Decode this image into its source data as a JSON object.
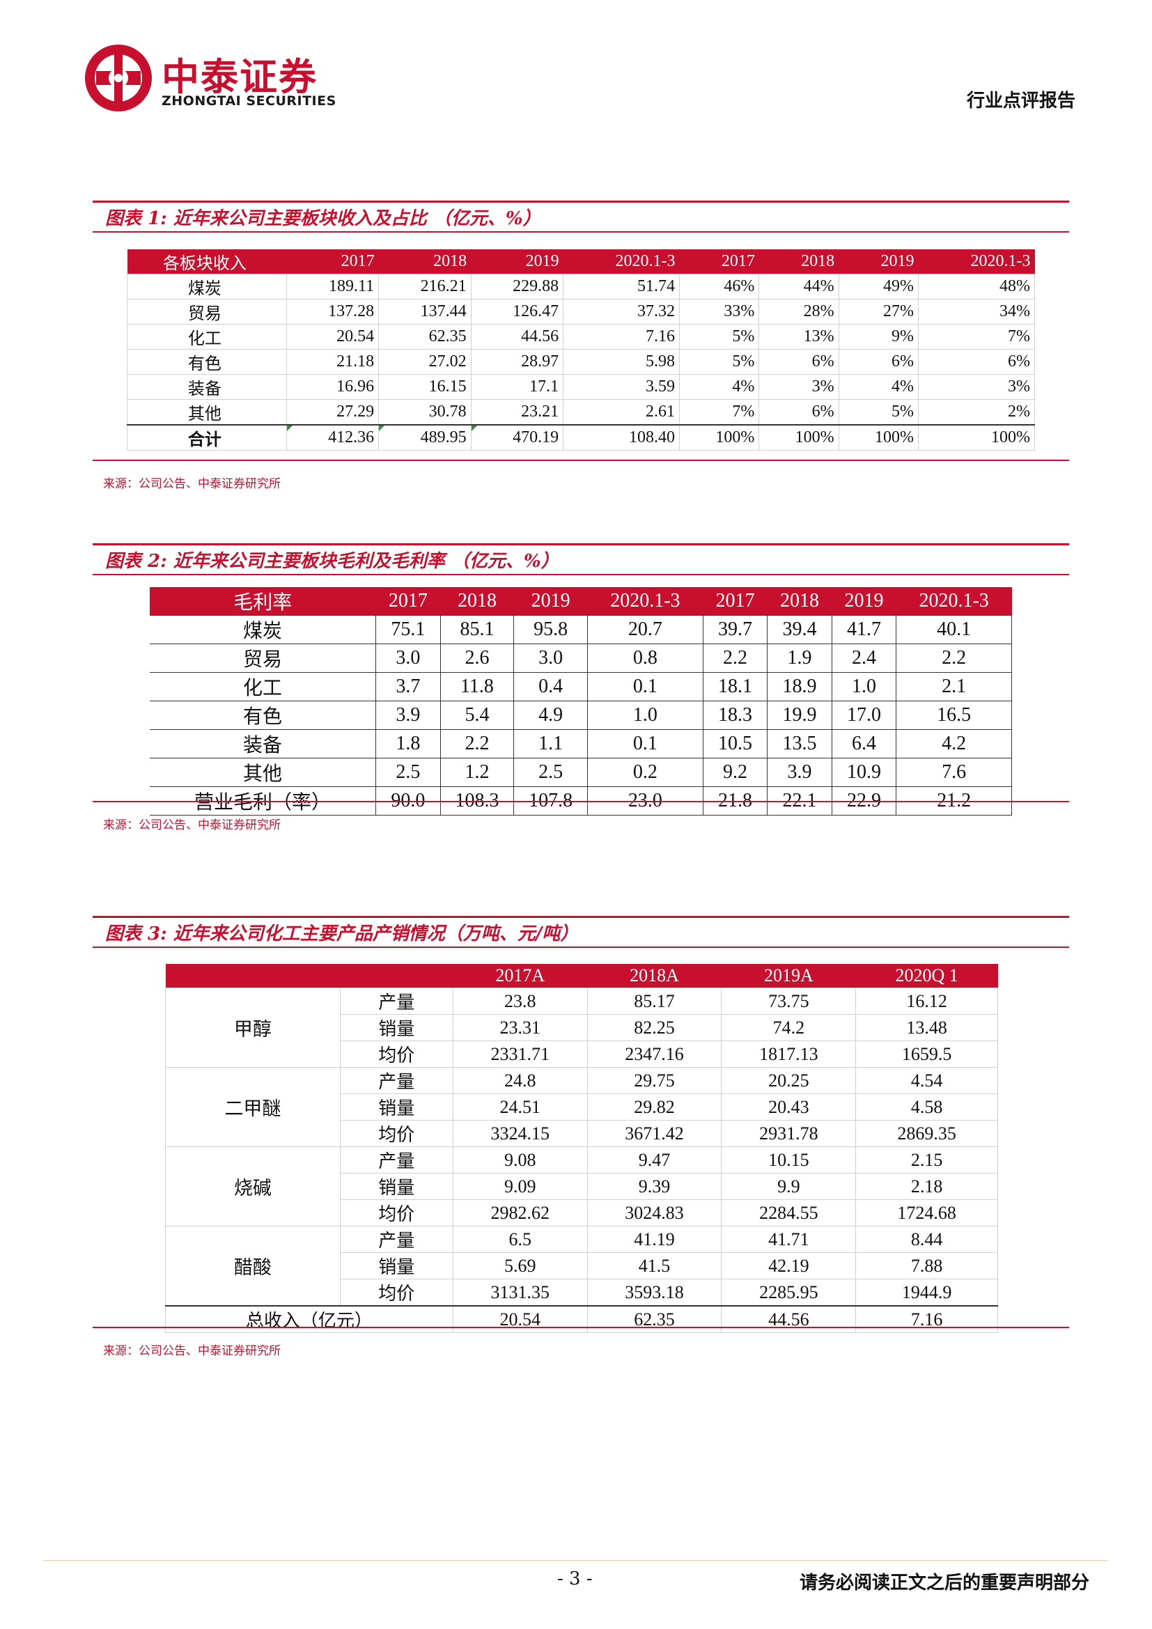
{
  "header": {
    "brand_cn": "中泰证券",
    "brand_en": "ZHONGTAI SECURITIES",
    "report_type": "行业点评报告"
  },
  "figure1": {
    "title": "图表 1:  近年来公司主要板块收入及占比  （亿元、%）",
    "columns": [
      "各板块收入",
      "2017",
      "2018",
      "2019",
      "2020.1-3",
      "2017",
      "2018",
      "2019",
      "2020.1-3"
    ],
    "rows": [
      [
        "煤炭",
        "189.11",
        "216.21",
        "229.88",
        "51.74",
        "46%",
        "44%",
        "49%",
        "48%"
      ],
      [
        "贸易",
        "137.28",
        "137.44",
        "126.47",
        "37.32",
        "33%",
        "28%",
        "27%",
        "34%"
      ],
      [
        "化工",
        "20.54",
        "62.35",
        "44.56",
        "7.16",
        "5%",
        "13%",
        "9%",
        "7%"
      ],
      [
        "有色",
        "21.18",
        "27.02",
        "28.97",
        "5.98",
        "5%",
        "6%",
        "6%",
        "6%"
      ],
      [
        "装备",
        "16.96",
        "16.15",
        "17.1",
        "3.59",
        "4%",
        "3%",
        "4%",
        "3%"
      ],
      [
        "其他",
        "27.29",
        "30.78",
        "23.21",
        "2.61",
        "7%",
        "6%",
        "5%",
        "2%"
      ]
    ],
    "total": [
      "合计",
      "412.36",
      "489.95",
      "470.19",
      "108.40",
      "100%",
      "100%",
      "100%",
      "100%"
    ],
    "source": "来源：公司公告、中泰证券研究所"
  },
  "figure2": {
    "title": "图表 2:  近年来公司主要板块毛利及毛利率  （亿元、%）",
    "columns": [
      "毛利率",
      "2017",
      "2018",
      "2019",
      "2020.1-3",
      "2017",
      "2018",
      "2019",
      "2020.1-3"
    ],
    "rows": [
      [
        "煤炭",
        "75.1",
        "85.1",
        "95.8",
        "20.7",
        "39.7",
        "39.4",
        "41.7",
        "40.1"
      ],
      [
        "贸易",
        "3.0",
        "2.6",
        "3.0",
        "0.8",
        "2.2",
        "1.9",
        "2.4",
        "2.2"
      ],
      [
        "化工",
        "3.7",
        "11.8",
        "0.4",
        "0.1",
        "18.1",
        "18.9",
        "1.0",
        "2.1"
      ],
      [
        "有色",
        "3.9",
        "5.4",
        "4.9",
        "1.0",
        "18.3",
        "19.9",
        "17.0",
        "16.5"
      ],
      [
        "装备",
        "1.8",
        "2.2",
        "1.1",
        "0.1",
        "10.5",
        "13.5",
        "6.4",
        "4.2"
      ],
      [
        "其他",
        "2.5",
        "1.2",
        "2.5",
        "0.2",
        "9.2",
        "3.9",
        "10.9",
        "7.6"
      ],
      [
        "营业毛利（率）",
        "90.0",
        "108.3",
        "107.8",
        "23.0",
        "21.8",
        "22.1",
        "22.9",
        "21.2"
      ]
    ],
    "source": "来源：公司公告、中泰证券研究所"
  },
  "figure3": {
    "title": "图表 3:  近年来公司化工主要产品产销情况（万吨、元/吨）",
    "columns": [
      "",
      "",
      "2017A",
      "2018A",
      "2019A",
      "2020Q 1"
    ],
    "products": [
      {
        "name": "甲醇",
        "rows": [
          [
            "产量",
            "23.8",
            "85.17",
            "73.75",
            "16.12"
          ],
          [
            "销量",
            "23.31",
            "82.25",
            "74.2",
            "13.48"
          ],
          [
            "均价",
            "2331.71",
            "2347.16",
            "1817.13",
            "1659.5"
          ]
        ]
      },
      {
        "name": "二甲醚",
        "rows": [
          [
            "产量",
            "24.8",
            "29.75",
            "20.25",
            "4.54"
          ],
          [
            "销量",
            "24.51",
            "29.82",
            "20.43",
            "4.58"
          ],
          [
            "均价",
            "3324.15",
            "3671.42",
            "2931.78",
            "2869.35"
          ]
        ]
      },
      {
        "name": "烧碱",
        "rows": [
          [
            "产量",
            "9.08",
            "9.47",
            "10.15",
            "2.15"
          ],
          [
            "销量",
            "9.09",
            "9.39",
            "9.9",
            "2.18"
          ],
          [
            "均价",
            "2982.62",
            "3024.83",
            "2284.55",
            "1724.68"
          ]
        ]
      },
      {
        "name": "醋酸",
        "rows": [
          [
            "产量",
            "6.5",
            "41.19",
            "41.71",
            "8.44"
          ],
          [
            "销量",
            "5.69",
            "41.5",
            "42.19",
            "7.88"
          ],
          [
            "均价",
            "3131.35",
            "3593.18",
            "2285.95",
            "1944.9"
          ]
        ]
      }
    ],
    "total": [
      "总收入（亿元）",
      "20.54",
      "62.35",
      "44.56",
      "7.16"
    ],
    "source": "来源：公司公告、中泰证券研究所"
  },
  "footer": {
    "page": "- 3 -",
    "disclaimer": "请务必阅读正文之后的重要声明部分"
  },
  "colors": {
    "brand_red": "#c8102e"
  }
}
